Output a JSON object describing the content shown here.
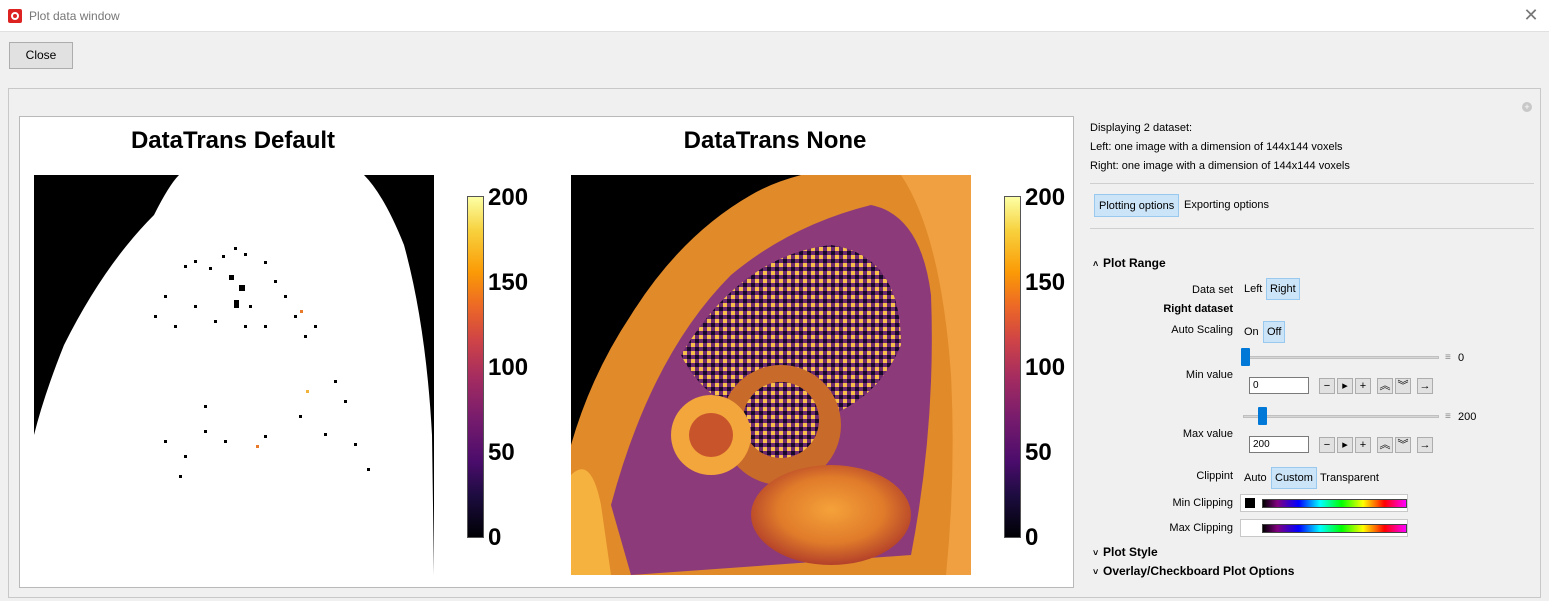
{
  "window": {
    "title": "Plot data window",
    "close_label": "Close"
  },
  "plots": {
    "left_title": "DataTrans Default",
    "right_title": "DataTrans None",
    "colorbar_ticks": [
      "200",
      "150",
      "100",
      "50",
      "0"
    ],
    "colormap": "inferno",
    "colorbar_range": [
      0,
      200
    ]
  },
  "info": {
    "line1": "Displaying 2 dataset:",
    "line2": "Left: one image with a dimension of 144x144 voxels",
    "line3": "Right: one image with a dimension of 144x144 voxels"
  },
  "tabs": {
    "plotting": "Plotting options",
    "exporting": "Exporting options"
  },
  "plot_range": {
    "heading": "Plot Range",
    "dataset_label": "Data set",
    "dataset_left": "Left",
    "dataset_right": "Right",
    "right_dataset_heading": "Right dataset",
    "autoscaling_label": "Auto Scaling",
    "autoscaling_on": "On",
    "autoscaling_off": "Off",
    "min_label": "Min value",
    "min_slider_value": "0",
    "min_input": "0",
    "max_label": "Max value",
    "max_slider_value": "200",
    "max_input": "200",
    "clipping_label": "Clippint",
    "clip_auto": "Auto",
    "clip_custom": "Custom",
    "clip_transparent": "Transparent",
    "min_clipping_label": "Min Clipping",
    "max_clipping_label": "Max Clipping"
  },
  "sections": {
    "plot_style": "Plot Style",
    "overlay": "Overlay/Checkboard Plot Options"
  }
}
